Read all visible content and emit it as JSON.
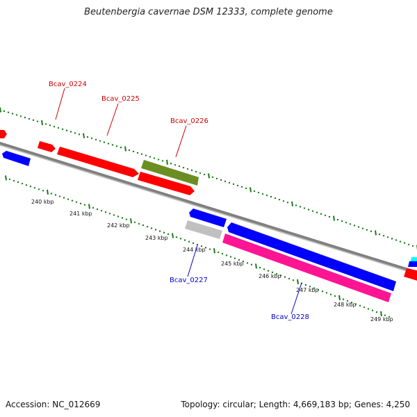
{
  "title": "Beutenbergia cavernae DSM 12333, complete genome",
  "footer": {
    "accession": "Accession: NC_012669",
    "summary": "Topology: circular; Length: 4,669,183 bp; Genes: 4,250"
  },
  "colors": {
    "backbone": "#808080",
    "tick": "#1a7a1a",
    "forward_gene": "#ff0000",
    "reverse_gene": "#0000ff",
    "olive_gene": "#6b8e23",
    "pink_gene": "#ff1493",
    "grey_gene": "#c0c0c0",
    "cyan_gene": "#00ffff",
    "label_red": "#cc0000",
    "label_blue": "#0000cc"
  },
  "kbp_labels": [
    "240 kbp",
    "241 kbp",
    "242 kbp",
    "243 kbp",
    "244 kbp",
    "245 kbp",
    "246 kbp",
    "247 kbp",
    "248 kbp",
    "249 kbp"
  ],
  "gene_labels": [
    {
      "text": "Bcav_0224",
      "strand": "forward"
    },
    {
      "text": "Bcav_0225",
      "strand": "forward"
    },
    {
      "text": "Bcav_0226",
      "strand": "forward"
    },
    {
      "text": "Bcav_0227",
      "strand": "reverse"
    },
    {
      "text": "Bcav_0228",
      "strand": "reverse"
    }
  ]
}
